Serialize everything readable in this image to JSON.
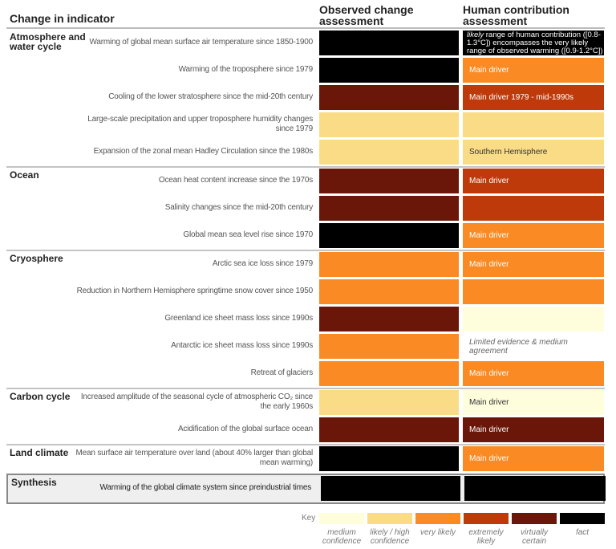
{
  "header": {
    "indicator": "Change in indicator",
    "observed": "Observed change assessment",
    "human": "Human contribution assessment"
  },
  "colors": {
    "medium": "#fefddc",
    "likely": "#fbdc86",
    "very_likely": "#f98a24",
    "extremely": "#bf3a0b",
    "virtually": "#6a1609",
    "fact": "#000000",
    "none": "#ffffff"
  },
  "sections": [
    {
      "title": "Atmosphere and water cycle",
      "rows": [
        {
          "label": "Warming of global mean surface air temperature since 1850-1900",
          "observed": "fact",
          "human": "fact",
          "human_text_italic": "likely",
          "human_text": " range of human contribution ([0.8-1.3°C]) encompasses the very likely range of observed warming ([0.9-1.2°C])"
        },
        {
          "label": "Warming of the troposphere since 1979",
          "observed": "fact",
          "human": "very_likely",
          "human_text": "Main driver"
        },
        {
          "label": "Cooling of the lower stratosphere since the mid-20th century",
          "observed": "virtually",
          "human": "extremely",
          "human_text": "Main driver 1979 - mid-1990s"
        },
        {
          "label": "Large-scale precipitation and upper troposphere humidity changes since 1979",
          "observed": "likely",
          "human": "likely",
          "human_text": ""
        },
        {
          "label": "Expansion of the zonal mean Hadley Circulation since the 1980s",
          "observed": "likely",
          "human": "likely",
          "human_text": "Southern Hemisphere"
        }
      ]
    },
    {
      "title": "Ocean",
      "rows": [
        {
          "label": "Ocean heat content increase since the 1970s",
          "observed": "virtually",
          "human": "extremely",
          "human_text": "Main driver"
        },
        {
          "label": "Salinity changes since the mid-20th century",
          "observed": "virtually",
          "human": "extremely",
          "human_text": ""
        },
        {
          "label": "Global mean sea level rise since 1970",
          "observed": "fact",
          "human": "very_likely",
          "human_text": "Main driver"
        }
      ]
    },
    {
      "title": "Cryosphere",
      "rows": [
        {
          "label": "Arctic sea ice loss since 1979",
          "observed": "very_likely",
          "human": "very_likely",
          "human_text": "Main driver"
        },
        {
          "label": "Reduction in Northern Hemisphere springtime snow cover since 1950",
          "observed": "very_likely",
          "human": "very_likely",
          "human_text": ""
        },
        {
          "label": "Greenland ice sheet mass loss since 1990s",
          "observed": "virtually",
          "human": "medium",
          "human_text": ""
        },
        {
          "label": "Antarctic ice sheet mass loss since 1990s",
          "observed": "very_likely",
          "human": "none",
          "human_text": "Limited evidence & medium agreement"
        },
        {
          "label": "Retreat of glaciers",
          "observed": "very_likely",
          "human": "very_likely",
          "human_text": "Main driver"
        }
      ]
    },
    {
      "title": "Carbon cycle",
      "rows": [
        {
          "label": "Increased amplitude of the seasonal cycle of atmospheric CO₂ since the early 1960s",
          "observed": "likely",
          "human": "medium",
          "human_text": "Main driver"
        },
        {
          "label": "Acidification of the global surface ocean",
          "observed": "virtually",
          "human": "virtually",
          "human_text": "Main driver"
        }
      ]
    },
    {
      "title": "Land climate",
      "rows": [
        {
          "label": "Mean surface air temperature over land (about 40% larger than global mean warming)",
          "observed": "fact",
          "human": "very_likely",
          "human_text": "Main driver"
        }
      ]
    },
    {
      "title": "Synthesis",
      "synthesis": true,
      "rows": [
        {
          "label": "Warming of the global climate system since preindustrial times",
          "observed": "fact",
          "human": "fact",
          "human_text": ""
        }
      ]
    }
  ],
  "key": {
    "label": "Key",
    "items": [
      {
        "level": "medium",
        "text": "medium confidence"
      },
      {
        "level": "likely",
        "text": "likely / high confidence"
      },
      {
        "level": "very_likely",
        "text": "very likely"
      },
      {
        "level": "extremely",
        "text": "extremely likely"
      },
      {
        "level": "virtually",
        "text": "virtually certain"
      },
      {
        "level": "fact",
        "text": "fact"
      }
    ]
  }
}
